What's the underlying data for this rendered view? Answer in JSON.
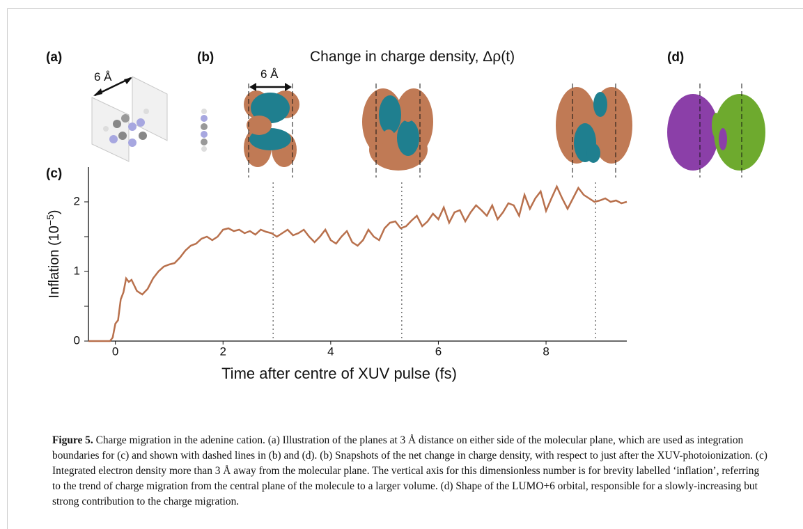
{
  "panels": {
    "a": "(a)",
    "b": "(b)",
    "c": "(c)",
    "d": "(d)"
  },
  "panel_b_title": "Change in charge density, Δρ(t)",
  "annotations": {
    "distance_a": "6 Å",
    "distance_b": "6 Å"
  },
  "chart_data": {
    "type": "line",
    "color": "#b8704c",
    "x_label": "Time after centre of XUV pulse (fs)",
    "y_label": {
      "text": "Inflation (10",
      "exponent": "−5",
      "close": ")"
    },
    "xlim": [
      -0.5,
      9.5
    ],
    "ylim": [
      0,
      2.5
    ],
    "xticks": [
      0,
      2,
      4,
      6,
      8
    ],
    "yticks": [
      0,
      1,
      2
    ],
    "yminor": [
      0.5,
      1.5
    ],
    "vlines": [
      2.93,
      5.32,
      8.92
    ],
    "x": [
      -0.5,
      -0.1,
      -0.05,
      0.0,
      0.05,
      0.1,
      0.15,
      0.2,
      0.25,
      0.3,
      0.4,
      0.5,
      0.6,
      0.7,
      0.8,
      0.9,
      1.0,
      1.1,
      1.2,
      1.3,
      1.4,
      1.5,
      1.6,
      1.7,
      1.8,
      1.9,
      2.0,
      2.1,
      2.2,
      2.3,
      2.4,
      2.5,
      2.6,
      2.7,
      2.8,
      2.9,
      3.0,
      3.1,
      3.2,
      3.3,
      3.4,
      3.5,
      3.6,
      3.7,
      3.8,
      3.9,
      4.0,
      4.1,
      4.2,
      4.3,
      4.4,
      4.5,
      4.6,
      4.7,
      4.8,
      4.9,
      5.0,
      5.1,
      5.2,
      5.3,
      5.4,
      5.5,
      5.6,
      5.7,
      5.8,
      5.9,
      6.0,
      6.1,
      6.2,
      6.3,
      6.4,
      6.5,
      6.6,
      6.7,
      6.8,
      6.9,
      7.0,
      7.1,
      7.2,
      7.3,
      7.4,
      7.5,
      7.6,
      7.7,
      7.8,
      7.9,
      8.0,
      8.1,
      8.2,
      8.3,
      8.4,
      8.5,
      8.6,
      8.7,
      8.8,
      8.9,
      9.0,
      9.1,
      9.2,
      9.3,
      9.4,
      9.5
    ],
    "values": [
      0,
      0,
      0.05,
      0.25,
      0.3,
      0.6,
      0.7,
      0.9,
      0.85,
      0.88,
      0.72,
      0.67,
      0.75,
      0.9,
      1.0,
      1.07,
      1.1,
      1.12,
      1.2,
      1.3,
      1.37,
      1.4,
      1.47,
      1.5,
      1.45,
      1.5,
      1.6,
      1.62,
      1.58,
      1.6,
      1.55,
      1.58,
      1.53,
      1.6,
      1.57,
      1.55,
      1.5,
      1.55,
      1.6,
      1.52,
      1.55,
      1.6,
      1.5,
      1.42,
      1.5,
      1.6,
      1.45,
      1.4,
      1.5,
      1.58,
      1.42,
      1.37,
      1.45,
      1.6,
      1.5,
      1.45,
      1.62,
      1.7,
      1.72,
      1.62,
      1.65,
      1.73,
      1.8,
      1.65,
      1.72,
      1.83,
      1.75,
      1.92,
      1.7,
      1.85,
      1.88,
      1.72,
      1.85,
      1.95,
      1.88,
      1.8,
      1.95,
      1.75,
      1.85,
      1.98,
      1.95,
      1.8,
      2.1,
      1.9,
      2.05,
      2.15,
      1.87,
      2.05,
      2.22,
      2.05,
      1.9,
      2.05,
      2.2,
      2.1,
      2.05,
      2.0,
      2.02,
      2.05,
      2.0,
      2.02,
      1.98,
      2.0
    ]
  },
  "caption": {
    "label": "Figure 5.",
    "text": " Charge migration in the adenine cation. (a) Illustration of the planes at 3 Å distance on either side of the molecular plane, which are used as integration boundaries for (c) and shown with dashed lines in (b) and (d). (b) Snapshots of the net change in charge density, with respect to just after the XUV-photoionization. (c) Integrated electron density more than 3 Å away from the molecular plane. The vertical axis for this dimensionless number is for brevity labelled ‘inflation’, referring to the trend of charge migration from the central plane of the molecule to a larger volume. (d) Shape of the LUMO+6 orbital, responsible for a slowly-increasing but strong contribution to the charge migration."
  }
}
